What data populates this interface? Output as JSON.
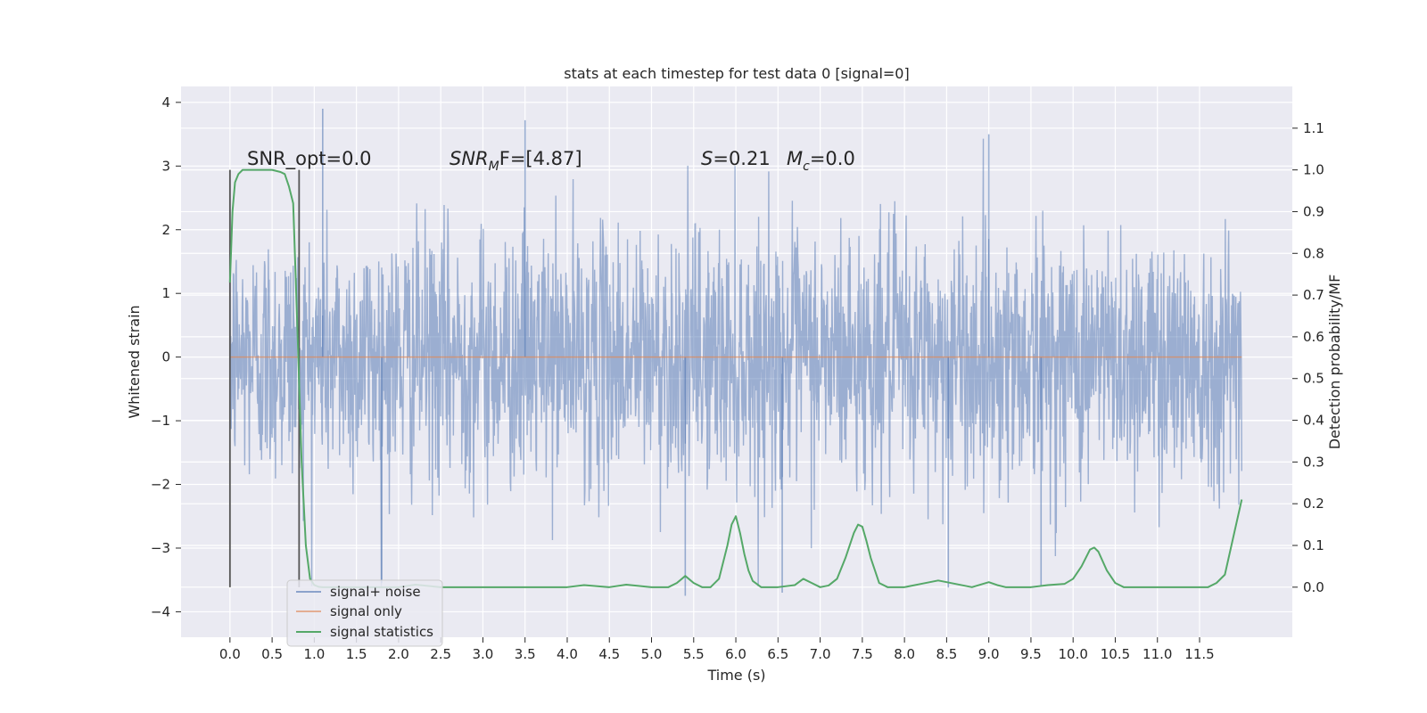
{
  "chart_data": {
    "type": "line",
    "title": "stats at each timestep for test data 0 [signal=0]",
    "xlabel": "Time (s)",
    "ylabel": "Whitened strain",
    "y2label": "Detection probability/MF",
    "xlim": [
      -0.58,
      12.6
    ],
    "ylim": [
      -4.4,
      4.25
    ],
    "y2lim": [
      -0.12,
      1.2
    ],
    "xticks": [
      0.0,
      0.5,
      1.0,
      1.5,
      2.0,
      2.5,
      3.0,
      3.5,
      4.0,
      4.5,
      5.0,
      5.5,
      6.0,
      6.5,
      7.0,
      7.5,
      8.0,
      8.5,
      9.0,
      9.5,
      10.0,
      10.5,
      11.0,
      11.5
    ],
    "xtick_labels": [
      "0.0",
      "0.5",
      "1.0",
      "1.5",
      "2.0",
      "2.5",
      "3.0",
      "3.5",
      "4.0",
      "4.5",
      "5.0",
      "5.5",
      "6.0",
      "6.5",
      "7.0",
      "7.5",
      "8.0",
      "8.5",
      "9.0",
      "9.5",
      "10.0",
      "10.5",
      "11.0",
      "11.5"
    ],
    "yticks": [
      -4,
      -3,
      -2,
      -1,
      0,
      1,
      2,
      3,
      4
    ],
    "ytick_labels": [
      "−4",
      "−3",
      "−2",
      "−1",
      "0",
      "1",
      "2",
      "3",
      "4"
    ],
    "y2ticks": [
      0.0,
      0.1,
      0.2,
      0.3,
      0.4,
      0.5,
      0.6,
      0.7,
      0.8,
      0.9,
      1.0,
      1.1
    ],
    "y2tick_labels": [
      "0.0",
      "0.1",
      "0.2",
      "0.3",
      "0.4",
      "0.5",
      "0.6",
      "0.7",
      "0.8",
      "0.9",
      "1.0",
      "1.1"
    ],
    "grid": true,
    "legend_position": "lower-left",
    "series": [
      {
        "name": "signal+ noise",
        "axis": "left",
        "color": "#4c72b0",
        "x_range": [
          0.0,
          12.0
        ],
        "amplitude_std": 1.0,
        "y_extremes": {
          "max": 3.9,
          "min": -3.75
        }
      },
      {
        "name": "signal only",
        "axis": "left",
        "color": "#dd8452",
        "x": [
          0.0,
          12.0
        ],
        "y": [
          0.0,
          0.0
        ]
      },
      {
        "name": "signal statistics",
        "axis": "right",
        "color": "#55a868",
        "x": [
          0.0,
          0.03,
          0.06,
          0.1,
          0.15,
          0.2,
          0.3,
          0.4,
          0.5,
          0.6,
          0.65,
          0.7,
          0.75,
          0.8,
          0.85,
          0.9,
          0.95,
          1.0,
          1.05,
          1.1,
          1.2,
          1.5,
          2.0,
          2.2,
          2.5,
          3.0,
          3.5,
          4.0,
          4.2,
          4.5,
          4.7,
          5.0,
          5.2,
          5.3,
          5.4,
          5.5,
          5.6,
          5.7,
          5.8,
          5.9,
          5.95,
          6.0,
          6.05,
          6.1,
          6.15,
          6.2,
          6.3,
          6.4,
          6.5,
          6.7,
          6.8,
          6.9,
          7.0,
          7.1,
          7.2,
          7.3,
          7.4,
          7.45,
          7.5,
          7.55,
          7.6,
          7.65,
          7.7,
          7.8,
          7.9,
          8.0,
          8.2,
          8.4,
          8.6,
          8.8,
          9.0,
          9.1,
          9.2,
          9.3,
          9.5,
          9.7,
          9.9,
          10.0,
          10.1,
          10.2,
          10.25,
          10.3,
          10.4,
          10.5,
          10.6,
          10.8,
          11.0,
          11.3,
          11.6,
          11.7,
          11.8,
          11.9,
          12.0
        ],
        "y": [
          0.73,
          0.9,
          0.97,
          0.99,
          1.0,
          1.0,
          1.0,
          1.0,
          1.0,
          0.995,
          0.99,
          0.96,
          0.92,
          0.62,
          0.3,
          0.1,
          0.02,
          0.005,
          0.001,
          0.0,
          0.0,
          0.0,
          0.0,
          0.006,
          0.0,
          0.0,
          0.0,
          0.0,
          0.005,
          0.0,
          0.006,
          0.0,
          0.0,
          0.01,
          0.027,
          0.01,
          0.0,
          0.0,
          0.02,
          0.1,
          0.15,
          0.17,
          0.13,
          0.08,
          0.04,
          0.015,
          0.0,
          0.0,
          0.0,
          0.005,
          0.02,
          0.01,
          0.0,
          0.004,
          0.02,
          0.07,
          0.13,
          0.15,
          0.145,
          0.11,
          0.07,
          0.04,
          0.01,
          0.0,
          0.0,
          0.0,
          0.008,
          0.016,
          0.008,
          0.0,
          0.012,
          0.005,
          0.0,
          0.0,
          0.0,
          0.005,
          0.008,
          0.02,
          0.05,
          0.09,
          0.095,
          0.085,
          0.04,
          0.01,
          0.0,
          0.0,
          0.0,
          0.0,
          0.0,
          0.01,
          0.03,
          0.12,
          0.21
        ]
      }
    ],
    "vlines": [
      {
        "x": 0.0,
        "color": "#555555"
      },
      {
        "x": 0.82,
        "color": "#555555"
      }
    ],
    "annotations": [
      {
        "id": "snr-opt",
        "text": "SNR_opt=0.0"
      },
      {
        "id": "snr-mf",
        "base": "SNR",
        "sub": "M",
        "rest": "F=[4.87]"
      },
      {
        "id": "s-value",
        "italic": "S",
        "rest": "=0.21"
      },
      {
        "id": "mc-value",
        "italic": "M",
        "sub": "c",
        "rest": "=0.0"
      }
    ]
  }
}
